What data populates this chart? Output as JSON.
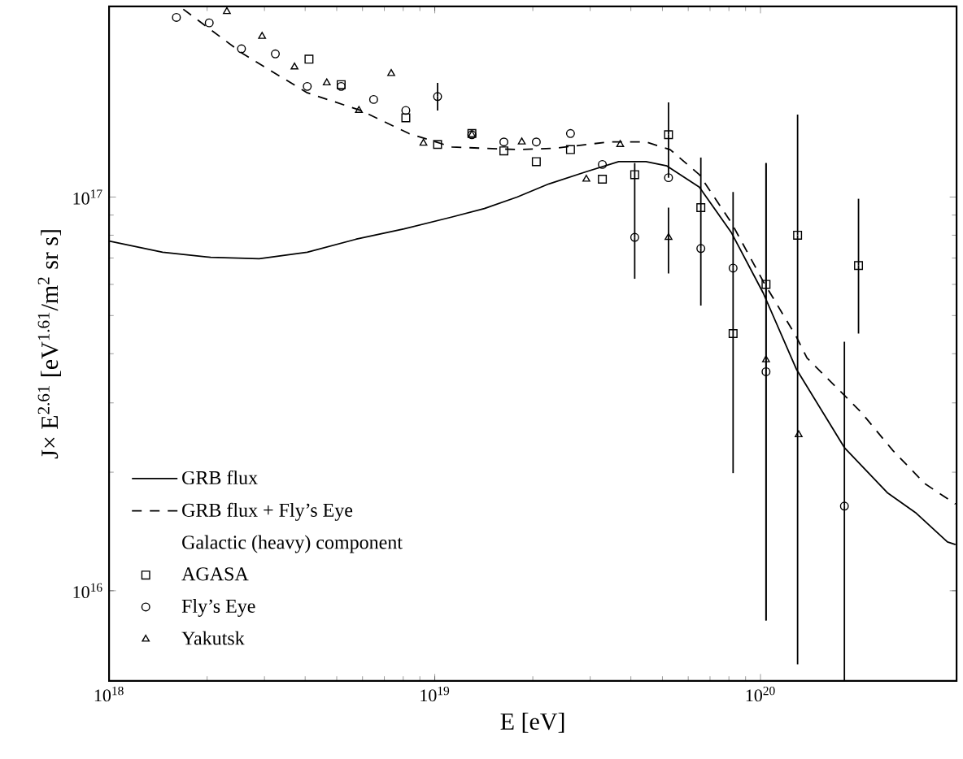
{
  "chart_data": {
    "type": "scatter",
    "xlabel": "E  [eV]",
    "ylabel": "J× E$^{2.61}$  [eV$^{1.61}$/m$^{2}$ sr s]",
    "log": "xy",
    "xlim": [
      1e+18,
      4e+20
    ],
    "ylim": [
      5900000000000000.0,
      3.05e+17
    ],
    "xticks": [
      {
        "value": 1e+18,
        "label": "10$^{18}$"
      },
      {
        "value": 1e+19,
        "label": "10$^{19}$"
      },
      {
        "value": 1e+20,
        "label": "10$^{20}$"
      }
    ],
    "yticks": [
      {
        "value": 1e+16,
        "label": "10$^{16}$"
      },
      {
        "value": 1e+17,
        "label": "10$^{17}$"
      }
    ],
    "grid": false,
    "legend": "bottom left",
    "annotations": [
      "Galactic (heavy) component"
    ],
    "series": [
      {
        "name": "GRB flux",
        "type": "line",
        "color": "#000000",
        "line_style": "solid",
        "marker": "none",
        "x": [
          1e+18,
          1.46e+18,
          2.05e+18,
          2.89e+18,
          4.06e+18,
          5.72e+18,
          8.05e+18,
          1.13e+19,
          1.42e+19,
          1.79e+19,
          2.24e+19,
          2.92e+19,
          3.67e+19,
          4.45e+19,
          5.16e+19,
          6.49e+19,
          8.15e+19,
          1.02e+20,
          1.29e+20,
          1.81e+20,
          2.46e+20,
          2.99e+20,
          3.75e+20,
          3.97e+20
        ],
        "values": [
          7.73e+16,
          7.24e+16,
          7.03e+16,
          6.97e+16,
          7.24e+16,
          7.81e+16,
          8.3e+16,
          8.9e+16,
          9.35e+16,
          1e+17,
          1.08e+17,
          1.16e+17,
          1.23e+17,
          1.23e+17,
          1.2e+17,
          1.06e+17,
          8.11e+16,
          5.7e+16,
          3.65e+16,
          2.31e+16,
          1.77e+16,
          1.58e+16,
          1.33e+16,
          1.31e+16
        ]
      },
      {
        "name": "GRB flux + Fly’s Eye",
        "type": "line",
        "color": "#000000",
        "line_style": "dashed",
        "marker": "none",
        "x": [
          1.69e+18,
          2.58e+18,
          4.06e+18,
          5.92e+18,
          8.33e+18,
          1.13e+19,
          1.79e+19,
          2.32e+19,
          3.42e+19,
          4.45e+19,
          5.28e+19,
          6.49e+19,
          8.15e+19,
          1.02e+20,
          1.29e+20,
          1.39e+20,
          2.03e+20,
          2.55e+20,
          3.2e+20,
          3.97e+20
        ],
        "values": [
          3e+17,
          2.31e+17,
          1.84e+17,
          1.66e+17,
          1.45e+17,
          1.34e+17,
          1.32e+17,
          1.33e+17,
          1.38e+17,
          1.38e+17,
          1.32e+17,
          1.14e+17,
          8.59e+16,
          6.1e+16,
          4.41e+16,
          3.9e+16,
          2.85e+16,
          2.27e+16,
          1.87e+16,
          1.66e+16
        ]
      },
      {
        "name": "AGASA",
        "color": "#000000",
        "marker": "square",
        "x": [
          4.11e+18,
          5.16e+18,
          8.15e+18,
          1.02e+19,
          1.3e+19,
          1.63e+19,
          2.05e+19,
          2.61e+19,
          3.27e+19,
          4.11e+19,
          5.22e+19,
          6.56e+19,
          8.24e+19,
          1.04e+20,
          1.3e+20,
          2e+20
        ],
        "values": [
          2.24e+17,
          1.93e+17,
          1.59e+17,
          1.36e+17,
          1.45e+17,
          1.31e+17,
          1.23e+17,
          1.32e+17,
          1.11e+17,
          1.14e+17,
          1.44e+17,
          9.4e+16,
          4.5e+16,
          6e+16,
          8e+16,
          6.7e+16
        ],
        "errors": [
          null,
          null,
          null,
          null,
          null,
          null,
          null,
          null,
          null,
          null,
          [
            1.12e+17,
            1.74e+17
          ],
          null,
          null,
          [
            8400000000000000.0,
            1.22e+17
          ],
          [
            6500000000000000.0,
            1.62e+17
          ],
          [
            4.5e+16,
            9.9e+16
          ]
        ]
      },
      {
        "name": "Fly’s Eye",
        "color": "#000000",
        "marker": "circle",
        "x": [
          1.61e+18,
          2.03e+18,
          2.55e+18,
          3.24e+18,
          4.06e+18,
          5.16e+18,
          6.49e+18,
          8.15e+18,
          1.02e+19,
          1.3e+19,
          1.63e+19,
          2.05e+19,
          2.61e+19,
          3.27e+19,
          4.11e+19,
          5.22e+19,
          6.56e+19,
          8.24e+19,
          1.04e+20,
          1.81e+20
        ],
        "values": [
          2.86e+17,
          2.77e+17,
          2.38e+17,
          2.31e+17,
          1.91e+17,
          1.91e+17,
          1.77e+17,
          1.66e+17,
          1.8e+17,
          1.44e+17,
          1.38e+17,
          1.38e+17,
          1.45e+17,
          1.21e+17,
          7.9e+16,
          1.12e+17,
          7.4e+16,
          6.6e+16,
          3.6e+16,
          1.64e+16
        ],
        "errors": [
          null,
          null,
          null,
          null,
          null,
          null,
          null,
          null,
          [
            1.66e+17,
            1.95e+17
          ],
          null,
          null,
          null,
          null,
          null,
          [
            6.2e+16,
            1.22e+17
          ],
          null,
          [
            5.3e+16,
            1.26e+17
          ],
          [
            1.99e+16,
            1.03e+17
          ],
          [
            8400000000000000.0,
            1.22e+17
          ],
          [
            5900000000000000.0,
            4.29e+16
          ]
        ]
      },
      {
        "name": "Yakutsk",
        "color": "#000000",
        "marker": "triangle",
        "x": [
          2.3e+18,
          2.95e+18,
          3.71e+18,
          4.66e+18,
          5.85e+18,
          7.35e+18,
          9.23e+18,
          1.3e+19,
          1.85e+19,
          2.92e+19,
          3.71e+19,
          5.22e+19,
          1.04e+20,
          1.31e+20
        ],
        "values": [
          2.96e+17,
          2.56e+17,
          2.14e+17,
          1.95e+17,
          1.66e+17,
          2.06e+17,
          1.37e+17,
          1.44e+17,
          1.38e+17,
          1.11e+17,
          1.36e+17,
          7.9e+16,
          3.86e+16,
          2.49e+16
        ],
        "errors": [
          null,
          null,
          null,
          null,
          null,
          null,
          null,
          null,
          null,
          null,
          null,
          [
            6.4e+16,
            9.4e+16
          ],
          null,
          null
        ]
      }
    ]
  }
}
